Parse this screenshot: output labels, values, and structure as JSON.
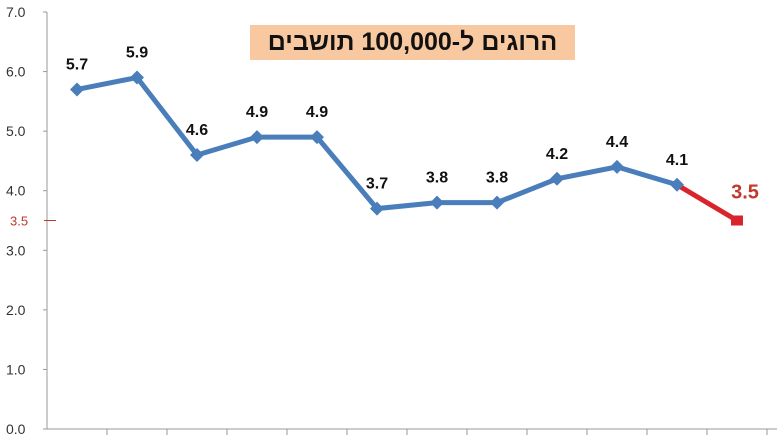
{
  "chart_data": {
    "type": "line",
    "title": "הרוגים ל-100,000  תושבים",
    "xlabel": "",
    "ylabel": "",
    "ylim": [
      0,
      7
    ],
    "yticks": [
      "0.0",
      "1.0",
      "2.0",
      "3.0",
      "4.0",
      "5.0",
      "6.0",
      "7.0"
    ],
    "highlight_ytick": {
      "value": 3.5,
      "label": "3.5"
    },
    "grid": false,
    "values": [
      5.7,
      5.9,
      4.6,
      4.9,
      4.9,
      3.7,
      3.8,
      3.8,
      4.2,
      4.4,
      4.1,
      3.5
    ],
    "labels": [
      "5.7",
      "5.9",
      "4.6",
      "4.9",
      "4.9",
      "3.7",
      "3.8",
      "3.8",
      "4.2",
      "4.4",
      "4.1",
      "3.5"
    ],
    "highlight_last_point": true,
    "colors": {
      "line": "#4a7ebb",
      "highlight": "#d9242b",
      "highlight_label": "#c0392b",
      "title_bg": "#f8c9a0",
      "axis": "#999999"
    }
  }
}
